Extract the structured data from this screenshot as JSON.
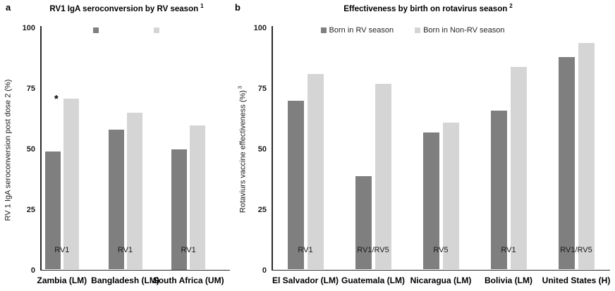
{
  "chart_data": [
    {
      "type": "bar",
      "panel_label": "a",
      "title": "RV1 IgA seroconversion by RV season",
      "title_superscript": "1",
      "ylabel": "RV 1 IgA seroconversion post dose 2 (%)",
      "ylabel_superscript": "",
      "ylim": [
        0,
        100
      ],
      "yticks": [
        100,
        75,
        50,
        25,
        0
      ],
      "grid": false,
      "legend_position": "top",
      "legend_labels_visible": false,
      "categories": [
        "Zambia (LM)",
        "Bangladesh (LM)",
        "South Africa (UM)"
      ],
      "series": [
        {
          "name": "",
          "color": "#7F7F7F",
          "values": [
            49,
            58,
            50
          ]
        },
        {
          "name": "",
          "color": "#D5D5D5",
          "values": [
            71,
            65,
            60
          ]
        }
      ],
      "bar_group_labels": [
        "RV1",
        "RV1",
        "RV1"
      ],
      "annotations": [
        {
          "text": "*",
          "category_index": 0,
          "series_index": 1
        }
      ]
    },
    {
      "type": "bar",
      "panel_label": "b",
      "title": "Effectiveness by birth on rotavirus season",
      "title_superscript": "2",
      "ylabel": "Rotaviurs vaccine effectiveness (%)",
      "ylabel_superscript": "3",
      "ylim": [
        0,
        100
      ],
      "yticks": [
        100,
        75,
        50,
        25,
        0
      ],
      "grid": false,
      "legend_position": "top",
      "legend_labels_visible": true,
      "categories": [
        "El Salvador (LM)",
        "Guatemala (LM)",
        "Nicaragua (LM)",
        "Bolivia (LM)",
        "United States (H)"
      ],
      "series": [
        {
          "name": "Born in RV season",
          "color": "#7F7F7F",
          "values": [
            70,
            39,
            57,
            66,
            88
          ]
        },
        {
          "name": "Born in Non-RV season",
          "color": "#D5D5D5",
          "values": [
            81,
            77,
            61,
            84,
            94
          ]
        }
      ],
      "bar_group_labels": [
        "RV1",
        "RV1/RV5",
        "RV5",
        "RV1",
        "RV1/RV5"
      ],
      "annotations": []
    }
  ],
  "colors": {
    "series_dark": "#7F7F7F",
    "series_light": "#D5D5D5",
    "axis": "#2b2b2b"
  }
}
